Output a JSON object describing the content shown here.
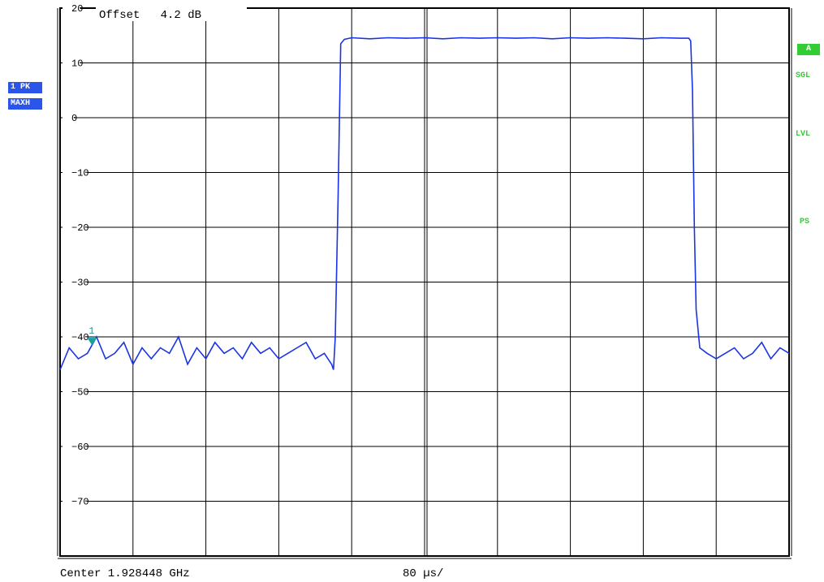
{
  "colors": {
    "trace": "#1a33e6",
    "marker": "#17a2a2",
    "trace_badge_bg": "#2b55e8",
    "status_green": "#33cc33",
    "grid": "#000000"
  },
  "header": {
    "offset_text": "Offset   4.2 dB"
  },
  "trace_badge": {
    "line1": "1 PK",
    "line2": "MAXH"
  },
  "side_status": {
    "a_badge": "A",
    "items": [
      "SGL",
      "LVL",
      "PS"
    ]
  },
  "footer": {
    "center_text": "Center 1.928448 GHz",
    "span_text": "80 µs/"
  },
  "chart_data": {
    "type": "line",
    "x_unit": "µs",
    "x_range": [
      0,
      800
    ],
    "x_divisions": 10,
    "ylim": [
      -80,
      20
    ],
    "y_ticks": [
      20,
      10,
      0,
      -10,
      -20,
      -30,
      -40,
      -50,
      -60,
      -70
    ],
    "grid": true,
    "series": [
      {
        "x": [
          0,
          10,
          20,
          30,
          40,
          50,
          60,
          70,
          80,
          90,
          100,
          110,
          120,
          130,
          140,
          150,
          160,
          170,
          180,
          190,
          200,
          210,
          220,
          230,
          240,
          250,
          260,
          270,
          280,
          290,
          298,
          300,
          302,
          305,
          308,
          312,
          320,
          340,
          360,
          380,
          400,
          420,
          440,
          460,
          480,
          500,
          520,
          540,
          560,
          580,
          600,
          620,
          640,
          660,
          680,
          690,
          692,
          694,
          696,
          698,
          702,
          710,
          720,
          730,
          740,
          750,
          760,
          770,
          780,
          790,
          800
        ],
        "values": [
          -46,
          -42,
          -44,
          -43,
          -40,
          -44,
          -43,
          -41,
          -45,
          -42,
          -44,
          -42,
          -43,
          -40,
          -45,
          -42,
          -44,
          -41,
          -43,
          -42,
          -44,
          -41,
          -43,
          -42,
          -44,
          -43,
          -42,
          -41,
          -44,
          -43,
          -45,
          -46,
          -40,
          -15,
          13.5,
          14.3,
          14.6,
          14.4,
          14.6,
          14.5,
          14.6,
          14.4,
          14.6,
          14.5,
          14.6,
          14.5,
          14.6,
          14.4,
          14.6,
          14.5,
          14.6,
          14.5,
          14.4,
          14.6,
          14.5,
          14.5,
          14.0,
          5,
          -20,
          -35,
          -42,
          -43,
          -44,
          -43,
          -42,
          -44,
          -43,
          -41,
          -44,
          -42,
          -43
        ]
      }
    ],
    "marker": {
      "label": "1",
      "x": 35
    }
  }
}
